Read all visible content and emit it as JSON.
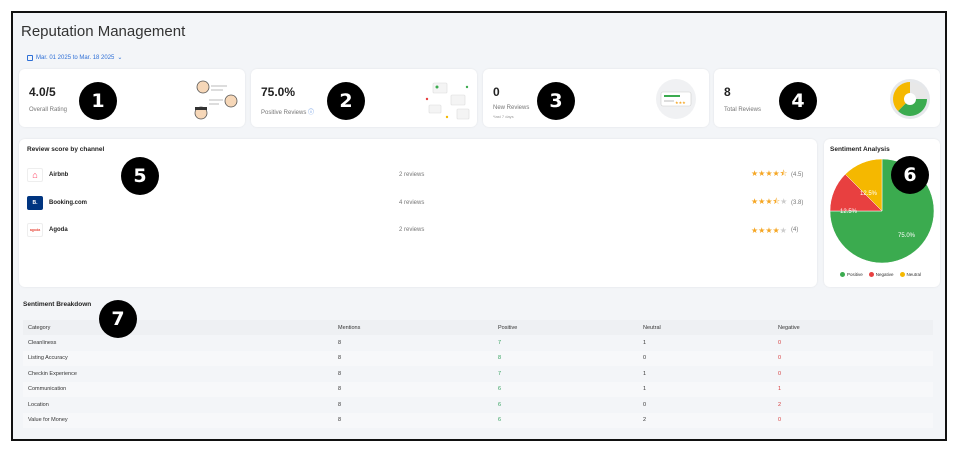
{
  "header": {
    "title": "Reputation Management",
    "date_range": "Mar. 01 2025 to Mar. 18 2025"
  },
  "kpis": [
    {
      "value": "4.0/5",
      "label": "Overall Rating",
      "sub": ""
    },
    {
      "value": "75.0%",
      "label": "Positive Reviews",
      "sub": ""
    },
    {
      "value": "0",
      "label": "New Reviews",
      "sub": "*last 7 days"
    },
    {
      "value": "8",
      "label": "Total Reviews",
      "sub": ""
    }
  ],
  "badges": [
    "1",
    "2",
    "3",
    "4",
    "5",
    "6",
    "7"
  ],
  "channels": {
    "title": "Review score by channel",
    "items": [
      {
        "name": "Airbnb",
        "reviews": "2 reviews",
        "rating": "(4.5)",
        "stars": 4.5,
        "color": "#ff385c",
        "logo_text": "⌂"
      },
      {
        "name": "Booking.com",
        "reviews": "4 reviews",
        "rating": "(3.8)",
        "stars": 3.8,
        "color": "#003580",
        "logo_text": "B."
      },
      {
        "name": "Agoda",
        "reviews": "2 reviews",
        "rating": "(4)",
        "stars": 4,
        "color": "#e84a3c",
        "logo_text": "agoda"
      }
    ]
  },
  "sentiment_analysis": {
    "title": "Sentiment Analysis",
    "labels": {
      "positive": "75.0%",
      "negative": "12.5%",
      "neutral": "12.5%"
    },
    "legend": [
      "Positive",
      "Negative",
      "Neutral"
    ],
    "colors": {
      "positive": "#3bab4f",
      "negative": "#e84040",
      "neutral": "#f5b800"
    }
  },
  "breakdown": {
    "title": "Sentiment Breakdown",
    "columns": [
      "Category",
      "Mentions",
      "Positive",
      "Neutral",
      "Negative"
    ],
    "rows": [
      [
        "Cleanliness",
        "8",
        "7",
        "1",
        "0"
      ],
      [
        "Listing Accuracy",
        "8",
        "8",
        "0",
        "0"
      ],
      [
        "Checkin Experience",
        "8",
        "7",
        "1",
        "0"
      ],
      [
        "Communication",
        "8",
        "6",
        "1",
        "1"
      ],
      [
        "Location",
        "8",
        "6",
        "0",
        "2"
      ],
      [
        "Value for Money",
        "8",
        "6",
        "2",
        "0"
      ]
    ]
  },
  "chart_data": {
    "type": "pie",
    "categories": [
      "Positive",
      "Negative",
      "Neutral"
    ],
    "values": [
      75.0,
      12.5,
      12.5
    ],
    "title": "Sentiment Analysis"
  }
}
